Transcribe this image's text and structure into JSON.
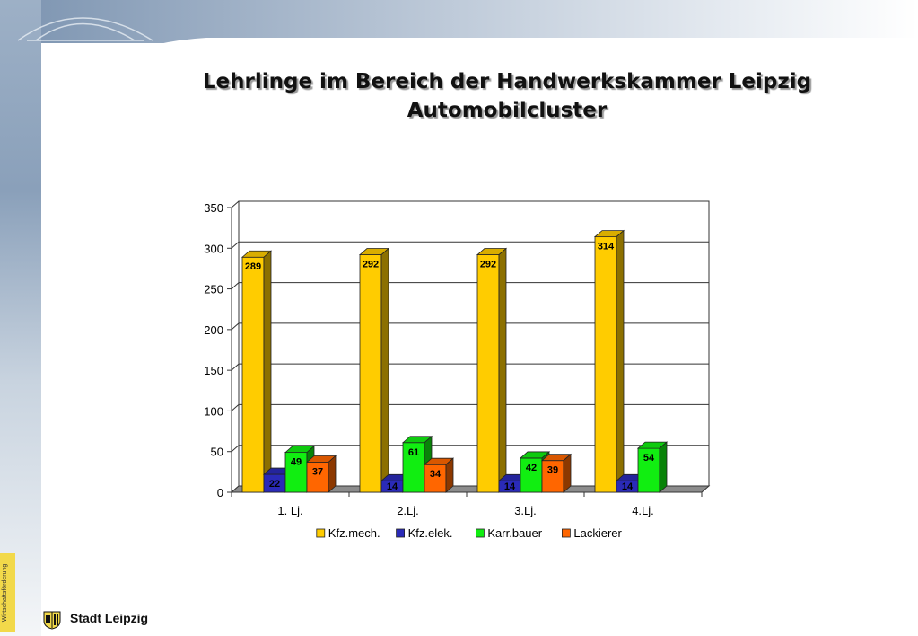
{
  "slide": {
    "title_line1": "Lehrlinge im Bereich der Handwerkskammer Leipzig",
    "title_line2": "Automobilcluster",
    "footer_org": "Stadt Leipzig",
    "side_label": "Wirtschaftsförderung"
  },
  "colors": {
    "Kfz.mech.": "#ffcc00",
    "Kfz.elek.": "#2a2ab8",
    "Karr.bauer": "#11ee11",
    "Lackierer": "#ff6600"
  },
  "chart_data": {
    "type": "bar",
    "style": "3d-clustered",
    "categories": [
      "1. Lj.",
      "2.Lj.",
      "3.Lj.",
      "4.Lj."
    ],
    "series": [
      {
        "name": "Kfz.mech.",
        "values": [
          289,
          292,
          292,
          314
        ]
      },
      {
        "name": "Kfz.elek.",
        "values": [
          22,
          14,
          14,
          14
        ]
      },
      {
        "name": "Karr.bauer",
        "values": [
          49,
          61,
          42,
          54
        ]
      },
      {
        "name": "Lackierer",
        "values": [
          37,
          34,
          39,
          null
        ]
      }
    ],
    "y_ticks": [
      "0",
      "50",
      "100",
      "150",
      "200",
      "250",
      "300",
      "350"
    ],
    "ylim": [
      0,
      350
    ],
    "grid": true,
    "legend_position": "bottom"
  }
}
